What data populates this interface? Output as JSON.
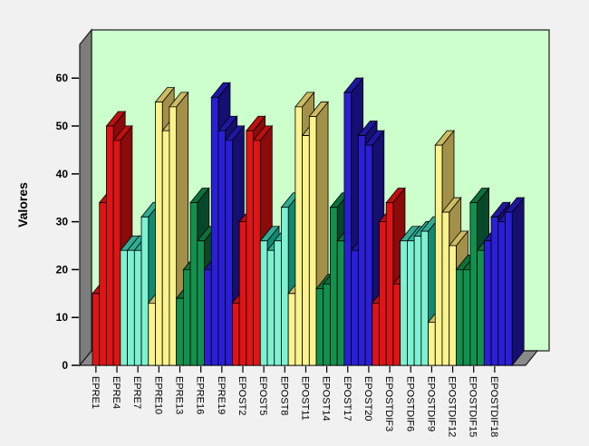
{
  "chart_data": {
    "type": "bar",
    "projection": "3d",
    "title": "",
    "ylabel": "Valores",
    "xlabel": "",
    "ylim": [
      0,
      60
    ],
    "yticks": [
      0,
      10,
      20,
      30,
      40,
      50,
      60
    ],
    "grid": false,
    "legend": null,
    "x_tick_every": 3,
    "x_tick_labels": [
      "EPRE1",
      "EPRE4",
      "EPRE7",
      "EPRE10",
      "EPRE13",
      "EPRE16",
      "EPRE19",
      "EPOST2",
      "EPOST5",
      "EPOST8",
      "EPOST11",
      "EPOST14",
      "EPOST17",
      "EPOST20",
      "EPOSTDIF3",
      "EPOSTDIF6",
      "EPOSTDIF9",
      "EPOSTDIF12",
      "EPOSTDIF15",
      "EPOSTDIF18"
    ],
    "values": [
      15,
      34,
      50,
      47,
      24,
      24,
      24,
      31,
      13,
      55,
      49,
      54,
      14,
      20,
      34,
      26,
      20,
      56,
      49,
      47,
      13,
      30,
      49,
      47,
      26,
      24,
      26,
      33,
      15,
      54,
      48,
      52,
      16,
      17,
      33,
      26,
      57,
      24,
      48,
      46,
      13,
      30,
      34,
      17,
      26,
      26,
      27,
      28,
      9,
      46,
      32,
      25,
      20,
      20,
      34,
      24,
      26,
      31,
      30,
      32
    ],
    "bars_per_color": 4,
    "color_cycle": [
      "red",
      "cyan",
      "yellow",
      "green",
      "blue"
    ],
    "palette": {
      "red": {
        "front": "#e01414",
        "top": "#bf0f0f",
        "side": "#8c0a0a"
      },
      "cyan": {
        "front": "#7df2d2",
        "top": "#2fae94",
        "side": "#0e8a72"
      },
      "yellow": {
        "front": "#fdf38d",
        "top": "#cdbc63",
        "side": "#a3914a"
      },
      "green": {
        "front": "#12914e",
        "top": "#0e713c",
        "side": "#07482a"
      },
      "blue": {
        "front": "#2a1fd6",
        "top": "#1f17a4",
        "side": "#140f70"
      }
    },
    "colors": {
      "background": "#f1f1f1",
      "backwall": "#ccffcc",
      "leftwall": "#7d7d7d",
      "floor": "#8a8a8a",
      "outline": "#1a1a1a",
      "axis_text": "#000000"
    }
  }
}
